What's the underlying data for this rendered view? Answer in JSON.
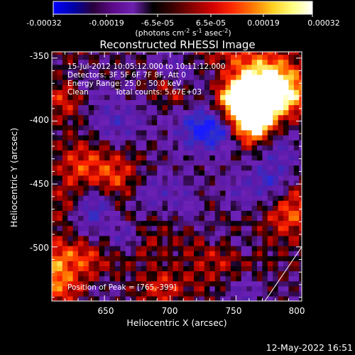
{
  "colorbar": {
    "tick_labels": [
      "-0.00032",
      "-0.00019",
      "-6.5e-05",
      "6.5e-05",
      "0.00019",
      "0.00032"
    ],
    "unit_label": "(photons cm",
    "unit_exp1": "-2",
    "unit_mid": " s",
    "unit_exp2": "-1",
    "unit_mid2": " asec",
    "unit_exp3": "-2",
    "unit_end": ")",
    "colors": [
      "#0000ff",
      "#0000aa",
      "#2a003a",
      "#5c0a8a",
      "#6d20b0",
      "#000000",
      "#3a0000",
      "#8b0000",
      "#d30000",
      "#ff2a00",
      "#ff7700",
      "#ffcf20",
      "#ffff80",
      "#ffffff"
    ]
  },
  "footer": {
    "timestamp": "12-May-2022 16:51"
  },
  "chart_data": {
    "type": "heatmap",
    "title": "Reconstructed RHESSI Image",
    "xlabel": "Heliocentric X (arcsec)",
    "ylabel": "Heliocentric Y (arcsec)",
    "x_ticks": [
      "650",
      "700",
      "750",
      "800"
    ],
    "y_ticks": [
      "-350",
      "-400",
      "-450",
      "-500"
    ],
    "xlim": [
      610,
      800
    ],
    "ylim": [
      -543,
      -345
    ],
    "grid": false,
    "annotations": {
      "time_range": "15-Jul-2012 10:05:12.000 to 10:11:12.000",
      "detectors": "Detectors: 3F 5F 6F 7F 8F, Att 0",
      "energy_range": "Energy Range: 25.0 - 50.0 keV",
      "clean": "Clean",
      "total_counts": "Total counts: 5.67E+03",
      "peak": "Position of Peak = [765,-399]"
    },
    "peak_position": [
      765,
      -399
    ],
    "limb_line": {
      "from": [
        772,
        -543
      ],
      "to": [
        800,
        -500
      ]
    },
    "value_range": [
      -0.00032,
      0.00032
    ]
  }
}
